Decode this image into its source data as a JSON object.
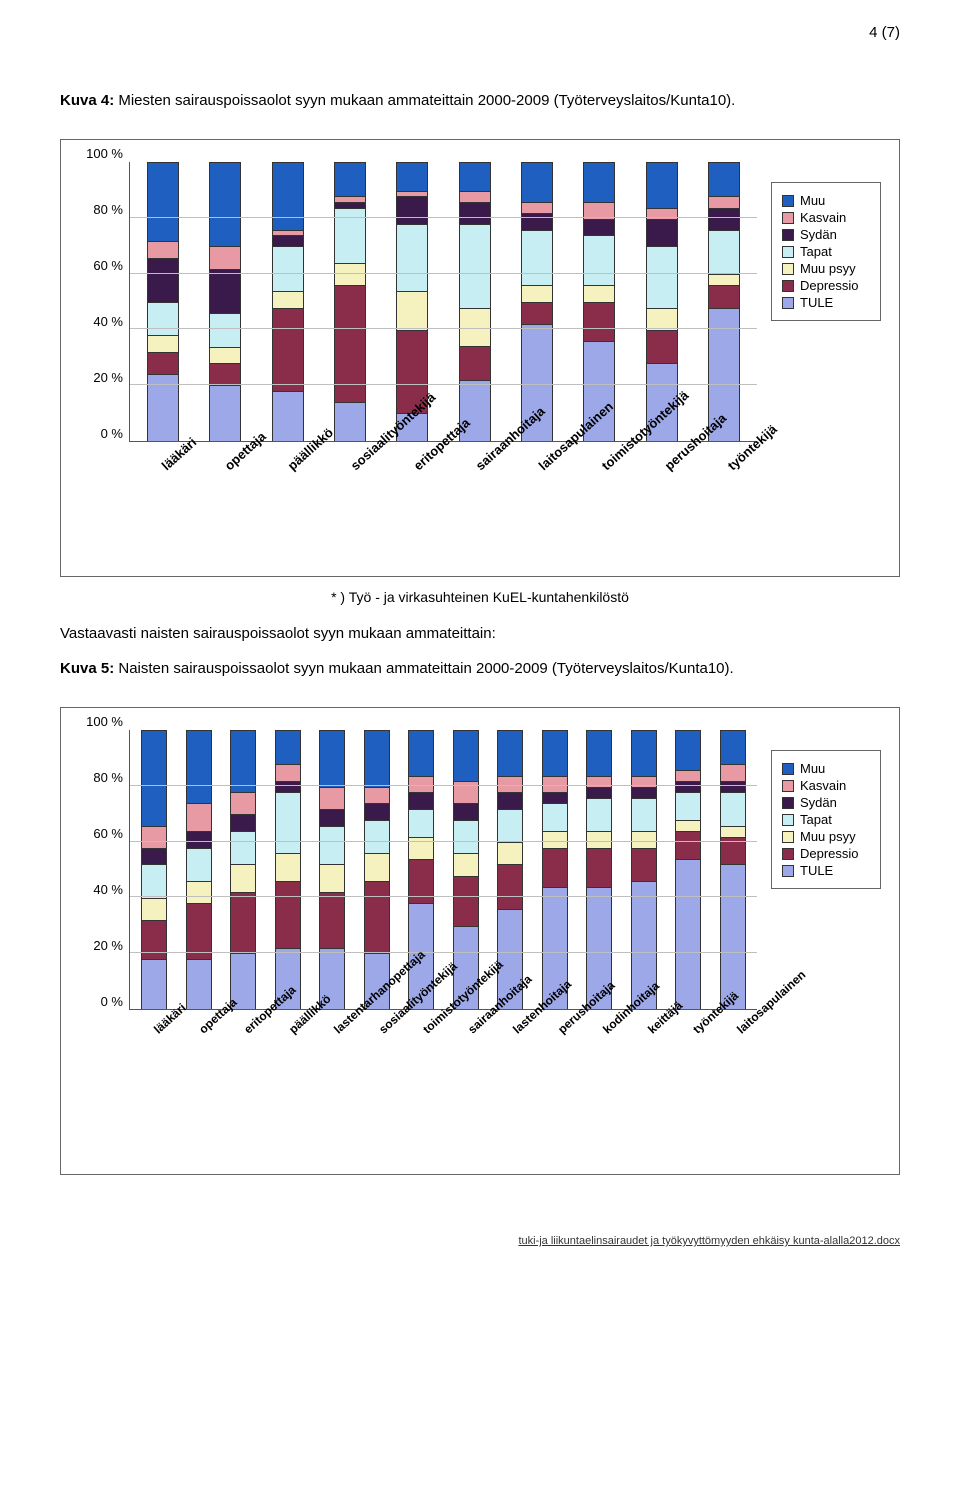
{
  "page_number_label": "4 (7)",
  "legend": {
    "items": [
      {
        "key": "Muu",
        "label": "Muu",
        "color": "#1f5fbf"
      },
      {
        "key": "Kasvain",
        "label": "Kasvain",
        "color": "#e89aa4"
      },
      {
        "key": "Sydan",
        "label": "Sydän",
        "color": "#3a1a4a"
      },
      {
        "key": "Tapat",
        "label": "Tapat",
        "color": "#c7eef2"
      },
      {
        "key": "Muupsyy",
        "label": "Muu psyy",
        "color": "#f5f2c0"
      },
      {
        "key": "Depressio",
        "label": "Depressio",
        "color": "#8a2d4a"
      },
      {
        "key": "TULE",
        "label": "TULE",
        "color": "#9da8e8"
      }
    ]
  },
  "chart1": {
    "caption_bold": "Kuva 4:",
    "caption_rest": " Miesten sairauspoissaolot syyn mukaan ammateittain 2000-2009 (Työterveyslaitos/Kunta10).",
    "footnote": "Työ - ja virkasuhteinen KuEL-kuntahenkilöstö",
    "footnote_marker": "* )",
    "ylim": [
      0,
      100
    ],
    "ytick_step": 20,
    "ytick_suffix": " %",
    "categories": [
      "lääkäri",
      "opettaja",
      "päällikkö",
      "sosiaalityöntekijä",
      "eritopettaja",
      "sairaanhoitaja",
      "laitosapulainen",
      "toimistotyöntekijä",
      "perushoitaja",
      "työntekijä"
    ],
    "stack_order": [
      "TULE",
      "Depressio",
      "Muupsyy",
      "Tapat",
      "Sydan",
      "Kasvain",
      "Muu"
    ],
    "series": {
      "lääkäri": {
        "TULE": 24,
        "Depressio": 8,
        "Muupsyy": 6,
        "Tapat": 12,
        "Sydan": 16,
        "Kasvain": 6,
        "Muu": 28
      },
      "opettaja": {
        "TULE": 20,
        "Depressio": 8,
        "Muupsyy": 6,
        "Tapat": 12,
        "Sydan": 16,
        "Kasvain": 8,
        "Muu": 30
      },
      "päällikkö": {
        "TULE": 18,
        "Depressio": 30,
        "Muupsyy": 6,
        "Tapat": 16,
        "Sydan": 4,
        "Kasvain": 2,
        "Muu": 24
      },
      "sosiaalityöntekijä": {
        "TULE": 14,
        "Depressio": 42,
        "Muupsyy": 8,
        "Tapat": 20,
        "Sydan": 2,
        "Kasvain": 2,
        "Muu": 12
      },
      "eritopettaja": {
        "TULE": 10,
        "Depressio": 30,
        "Muupsyy": 14,
        "Tapat": 24,
        "Sydan": 10,
        "Kasvain": 2,
        "Muu": 10
      },
      "sairaanhoitaja": {
        "TULE": 22,
        "Depressio": 12,
        "Muupsyy": 14,
        "Tapat": 30,
        "Sydan": 8,
        "Kasvain": 4,
        "Muu": 10
      },
      "laitosapulainen": {
        "TULE": 42,
        "Depressio": 8,
        "Muupsyy": 6,
        "Tapat": 20,
        "Sydan": 6,
        "Kasvain": 4,
        "Muu": 14
      },
      "toimistotyöntekijä": {
        "TULE": 36,
        "Depressio": 14,
        "Muupsyy": 6,
        "Tapat": 18,
        "Sydan": 6,
        "Kasvain": 6,
        "Muu": 14
      },
      "perushoitaja": {
        "TULE": 28,
        "Depressio": 12,
        "Muupsyy": 8,
        "Tapat": 22,
        "Sydan": 10,
        "Kasvain": 4,
        "Muu": 16
      },
      "työntekijä": {
        "TULE": 48,
        "Depressio": 8,
        "Muupsyy": 4,
        "Tapat": 16,
        "Sydan": 8,
        "Kasvain": 4,
        "Muu": 12
      }
    }
  },
  "inter_text": "Vastaavasti naisten sairauspoissaolot syyn mukaan ammateittain:",
  "chart2": {
    "caption_bold": "Kuva 5:",
    "caption_rest": " Naisten sairauspoissaolot syyn mukaan ammateittain 2000-2009 (Työterveyslaitos/Kunta10).",
    "ylim": [
      0,
      100
    ],
    "ytick_step": 20,
    "ytick_suffix": " %",
    "categories": [
      "lääkäri",
      "opettaja",
      "eritopettaja",
      "päällikkö",
      "lastentarhanopettaja",
      "sosiaalityöntekijä",
      "toimistotyöntekijä",
      "sairaanhoitaja",
      "lastenhoitaja",
      "perushoitaja",
      "kodinhoitaja",
      "keittäjä",
      "työntekijä",
      "laitosapulainen"
    ],
    "stack_order": [
      "TULE",
      "Depressio",
      "Muupsyy",
      "Tapat",
      "Sydan",
      "Kasvain",
      "Muu"
    ],
    "series": {
      "lääkäri": {
        "TULE": 18,
        "Depressio": 14,
        "Muupsyy": 8,
        "Tapat": 12,
        "Sydan": 6,
        "Kasvain": 8,
        "Muu": 34
      },
      "opettaja": {
        "TULE": 18,
        "Depressio": 20,
        "Muupsyy": 8,
        "Tapat": 12,
        "Sydan": 6,
        "Kasvain": 10,
        "Muu": 26
      },
      "eritopettaja": {
        "TULE": 20,
        "Depressio": 22,
        "Muupsyy": 10,
        "Tapat": 12,
        "Sydan": 6,
        "Kasvain": 8,
        "Muu": 22
      },
      "päällikkö": {
        "TULE": 22,
        "Depressio": 24,
        "Muupsyy": 10,
        "Tapat": 22,
        "Sydan": 4,
        "Kasvain": 6,
        "Muu": 12
      },
      "lastentarhanopettaja": {
        "TULE": 22,
        "Depressio": 20,
        "Muupsyy": 10,
        "Tapat": 14,
        "Sydan": 6,
        "Kasvain": 8,
        "Muu": 20
      },
      "sosiaalityöntekijä": {
        "TULE": 20,
        "Depressio": 26,
        "Muupsyy": 10,
        "Tapat": 12,
        "Sydan": 6,
        "Kasvain": 6,
        "Muu": 20
      },
      "toimistotyöntekijä": {
        "TULE": 38,
        "Depressio": 16,
        "Muupsyy": 8,
        "Tapat": 10,
        "Sydan": 6,
        "Kasvain": 6,
        "Muu": 16
      },
      "sairaanhoitaja": {
        "TULE": 30,
        "Depressio": 18,
        "Muupsyy": 8,
        "Tapat": 12,
        "Sydan": 6,
        "Kasvain": 8,
        "Muu": 18
      },
      "lastenhoitaja": {
        "TULE": 36,
        "Depressio": 16,
        "Muupsyy": 8,
        "Tapat": 12,
        "Sydan": 6,
        "Kasvain": 6,
        "Muu": 16
      },
      "perushoitaja": {
        "TULE": 44,
        "Depressio": 14,
        "Muupsyy": 6,
        "Tapat": 10,
        "Sydan": 4,
        "Kasvain": 6,
        "Muu": 16
      },
      "kodinhoitaja": {
        "TULE": 44,
        "Depressio": 14,
        "Muupsyy": 6,
        "Tapat": 12,
        "Sydan": 4,
        "Kasvain": 4,
        "Muu": 16
      },
      "keittäjä": {
        "TULE": 46,
        "Depressio": 12,
        "Muupsyy": 6,
        "Tapat": 12,
        "Sydan": 4,
        "Kasvain": 4,
        "Muu": 16
      },
      "työntekijä": {
        "TULE": 54,
        "Depressio": 10,
        "Muupsyy": 4,
        "Tapat": 10,
        "Sydan": 4,
        "Kasvain": 4,
        "Muu": 14
      },
      "laitosapulainen": {
        "TULE": 52,
        "Depressio": 10,
        "Muupsyy": 4,
        "Tapat": 12,
        "Sydan": 4,
        "Kasvain": 6,
        "Muu": 12
      }
    }
  },
  "footer_text": "tuki-ja liikuntaelinsairaudet ja työkyvyttömyyden ehkäisy kunta-alalla2012.docx"
}
